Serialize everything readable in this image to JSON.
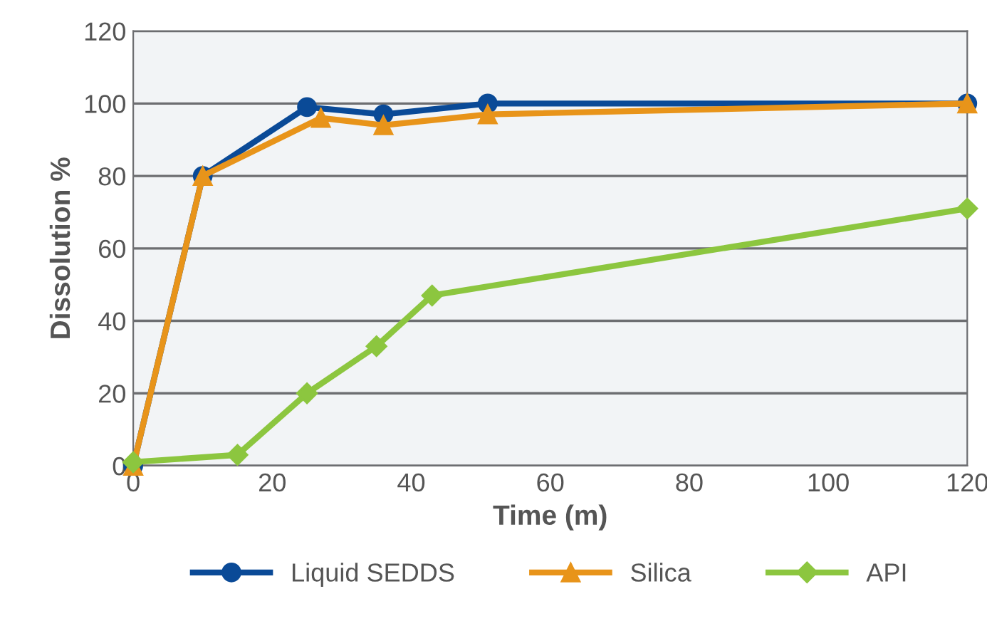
{
  "chart_data": {
    "type": "line",
    "xlabel": "Time (m)",
    "ylabel": "Dissolution %",
    "xlim": [
      0,
      120
    ],
    "xticks": [
      0,
      20,
      40,
      60,
      80,
      100,
      120
    ],
    "ylim": [
      0,
      120
    ],
    "yticks": [
      0,
      20,
      40,
      60,
      80,
      100,
      120
    ],
    "grid": "y",
    "legend": "bottom",
    "line_style": "solid",
    "series": [
      {
        "name": "Liquid SEDDS",
        "color": "#0a4a97",
        "marker": "circle",
        "x": [
          0,
          10,
          25,
          36,
          51,
          120
        ],
        "values": [
          0,
          80,
          99,
          97,
          100,
          100
        ]
      },
      {
        "name": "Silica",
        "color": "#e8941a",
        "marker": "triangle",
        "x": [
          0,
          10,
          27,
          36,
          51,
          120
        ],
        "values": [
          0,
          80,
          96,
          94,
          97,
          100
        ]
      },
      {
        "name": "API",
        "color": "#8cc63f",
        "marker": "diamond",
        "x": [
          0,
          15,
          25,
          35,
          43,
          120
        ],
        "values": [
          1,
          3,
          20,
          33,
          47,
          71
        ]
      }
    ]
  }
}
